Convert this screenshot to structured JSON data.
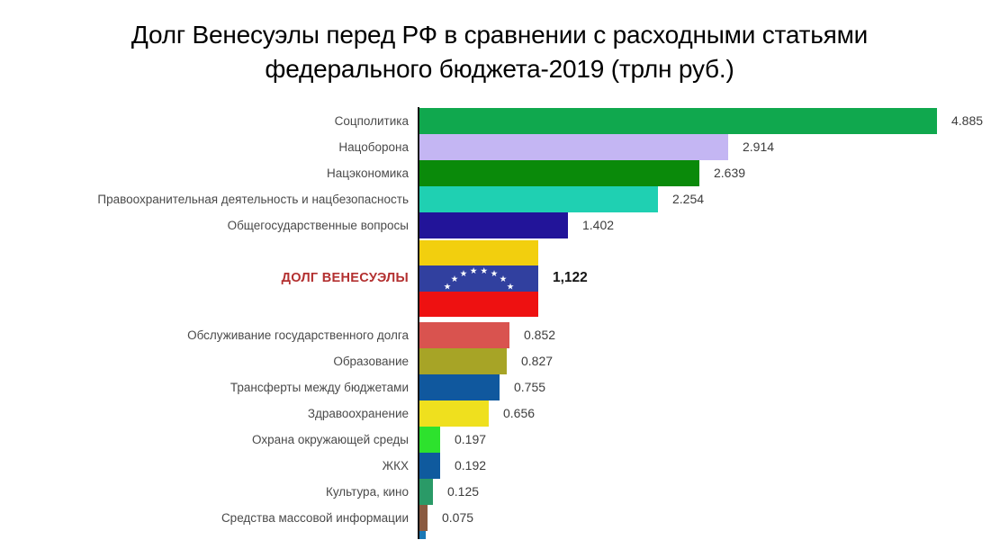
{
  "title": {
    "line1": "Долг Венесуэлы перед РФ в сравнении с расходными статьями",
    "line2": "федерального бюджета-2019 (трлн руб.)"
  },
  "chart_data": {
    "type": "bar",
    "orientation": "horizontal",
    "unit": "трлн руб.",
    "axis_color": "#141414",
    "value_label_color": "#3c3c3c",
    "category_label_color": "#4a4a4a",
    "highlight_label_color": "#b33030",
    "bars": [
      {
        "label": "Соцполитика",
        "value": 4.885,
        "display": "4.885",
        "color": "#10a84e"
      },
      {
        "label": "Нацоборона",
        "value": 2.914,
        "display": "2.914",
        "color": "#c4b6f3"
      },
      {
        "label": "Нацэкономика",
        "value": 2.639,
        "display": "2.639",
        "color": "#0a8a0a"
      },
      {
        "label": "Правоохранительная деятельность и нацбезопасность",
        "value": 2.254,
        "display": "2.254",
        "color": "#1fd0b2"
      },
      {
        "label": "Общегосударственные вопросы",
        "value": 1.402,
        "display": "1.402",
        "color": "#221499"
      },
      {
        "label": "ДОЛГ ВЕНЕСУЭЛЫ",
        "value": 1.122,
        "display": "1,122",
        "flag": true,
        "flag_colors": [
          "#f2cf0e",
          "#31409f",
          "#ee1111"
        ],
        "star_color": "#ffffff",
        "star_count": 8
      },
      {
        "label": "Обслуживание государственного долга",
        "value": 0.852,
        "display": "0.852",
        "color": "#d9534f"
      },
      {
        "label": "Образование",
        "value": 0.827,
        "display": "0.827",
        "color": "#a7a426"
      },
      {
        "label": "Трансферты между бюджетами",
        "value": 0.755,
        "display": "0.755",
        "color": "#10589e"
      },
      {
        "label": "Здравоохранение",
        "value": 0.656,
        "display": "0.656",
        "color": "#efe01e"
      },
      {
        "label": "Охрана окружающей среды",
        "value": 0.197,
        "display": "0.197",
        "color": "#2de22d"
      },
      {
        "label": "ЖКХ",
        "value": 0.192,
        "display": "0.192",
        "color": "#0f5a9e"
      },
      {
        "label": "Культура, кино",
        "value": 0.125,
        "display": "0.125",
        "color": "#2a9a67"
      },
      {
        "label": "Средства массовой информации",
        "value": 0.075,
        "display": "0.075",
        "color": "#8a5a40"
      }
    ],
    "truncated_bar": {
      "color": "#1a78b5",
      "note": "partial bar cut off at bottom edge, no label visible"
    }
  }
}
